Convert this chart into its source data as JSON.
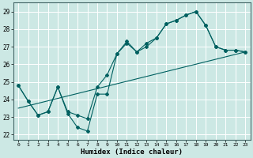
{
  "xlabel": "Humidex (Indice chaleur)",
  "background_color": "#cce8e4",
  "grid_color": "#ffffff",
  "line_color": "#006060",
  "xlim": [
    -0.5,
    23.5
  ],
  "ylim": [
    21.7,
    29.5
  ],
  "xticks": [
    0,
    1,
    2,
    3,
    4,
    5,
    6,
    7,
    8,
    9,
    10,
    11,
    12,
    13,
    14,
    15,
    16,
    17,
    18,
    19,
    20,
    21,
    22,
    23
  ],
  "yticks": [
    22,
    23,
    24,
    25,
    26,
    27,
    28,
    29
  ],
  "line1_x": [
    0,
    1,
    2,
    3,
    4,
    5,
    6,
    7,
    8,
    9,
    10,
    11,
    12,
    13,
    14,
    15,
    16,
    17,
    18,
    19,
    20,
    21,
    22,
    23
  ],
  "line1_y": [
    24.8,
    23.9,
    23.1,
    23.3,
    24.7,
    23.2,
    22.4,
    22.2,
    24.3,
    24.3,
    26.6,
    27.3,
    26.7,
    27.0,
    27.5,
    28.3,
    28.5,
    28.8,
    29.0,
    28.2,
    27.0,
    26.8,
    26.8,
    26.7
  ],
  "line2_x": [
    0,
    1,
    2,
    3,
    4,
    5,
    6,
    7,
    8,
    9,
    10,
    11,
    12,
    13,
    14,
    15,
    16,
    17,
    18,
    19,
    20,
    21,
    22,
    23
  ],
  "line2_y": [
    24.8,
    23.9,
    23.1,
    23.3,
    24.7,
    23.3,
    23.1,
    22.9,
    24.7,
    25.4,
    26.6,
    27.2,
    26.7,
    27.2,
    27.5,
    28.3,
    28.5,
    28.8,
    29.0,
    28.2,
    27.0,
    26.8,
    26.8,
    26.7
  ],
  "line3_x": [
    0,
    23
  ],
  "line3_y": [
    23.5,
    26.7
  ]
}
